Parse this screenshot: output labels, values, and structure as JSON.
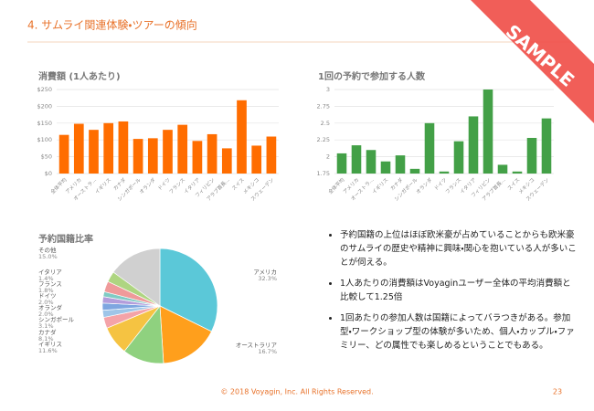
{
  "header": {
    "title": "4. サムライ関連体験・ツアーの傾向"
  },
  "ribbon": "SAMPLE",
  "chart_data": [
    {
      "type": "bar",
      "title": "消費額 (1人あたり)",
      "color": "#ff6d00",
      "grid": true,
      "categories": [
        "全体平均",
        "アメリカ",
        "オーストラ...",
        "イギリス",
        "カナダ",
        "シンガポール",
        "オランダ",
        "ドイツ",
        "フランス",
        "イタリア",
        "フィリピン",
        "アラブ首長...",
        "スイス",
        "メキシコ",
        "スウェーデン"
      ],
      "values": [
        115,
        148,
        130,
        150,
        155,
        103,
        105,
        130,
        145,
        97,
        117,
        75,
        218,
        83,
        110
      ],
      "ylim": [
        0,
        250
      ],
      "yticks": [
        {
          "value": 0,
          "label": "$0"
        },
        {
          "value": 50,
          "label": "$50"
        },
        {
          "value": 100,
          "label": "$100"
        },
        {
          "value": 150,
          "label": "$150"
        },
        {
          "value": 200,
          "label": "$200"
        },
        {
          "value": 250,
          "label": "$250"
        }
      ]
    },
    {
      "type": "bar",
      "title": "1回の予約で参加する人数",
      "color": "#43a047",
      "grid": true,
      "categories": [
        "全体平均",
        "アメリカ",
        "オーストラ...",
        "イギリス",
        "カナダ",
        "シンガポール",
        "オランダ",
        "ドイツ",
        "フランス",
        "イタリア",
        "フィリピン",
        "アラブ首長...",
        "スイス",
        "メキシコ",
        "スウェーデン"
      ],
      "values": [
        2.05,
        2.17,
        2.1,
        1.93,
        2.02,
        1.82,
        2.5,
        1.78,
        2.23,
        2.6,
        3.0,
        1.88,
        1.78,
        2.28,
        2.57
      ],
      "ylim": [
        1.75,
        3
      ],
      "yticks": [
        1.75,
        2,
        2.25,
        2.5,
        2.75,
        3
      ]
    },
    {
      "type": "pie",
      "title": "予約国籍比率",
      "categories": [
        "アメリカ",
        "オーストラリア",
        "イギリス",
        "カナダ",
        "シンガポール",
        "オランダ",
        "ドイツ",
        "フランス",
        "イタリア",
        null,
        null,
        "その他"
      ],
      "values": [
        32.3,
        16.7,
        11.6,
        8.1,
        3.1,
        2.0,
        2.0,
        1.8,
        1.4,
        3.0,
        3.0,
        15.0
      ],
      "value_labels": [
        "32.3%",
        "16.7%",
        "11.6%",
        "8.1%",
        "3.1%",
        "2.0%",
        "2.0%",
        "1.8%",
        "1.4%",
        null,
        null,
        "15.0%"
      ],
      "colors": [
        "#5bc8d8",
        "#ff9f1c",
        "#8fd17f",
        "#f5c342",
        "#f4a3a8",
        "#9ec5e8",
        "#7ea6e0",
        "#b39ddb",
        "#80cbc4",
        "#ef9a9a",
        "#aed581",
        "#d0d0d0"
      ]
    }
  ],
  "bullets": [
    "予約国籍の上位はほぼ欧米豪が占めていることからも欧米豪のサムライの歴史や精神に興味・関心を抱いている人が多いことが伺える。",
    "1人あたりの消費額はVoyaginユーザー全体の平均消費額と比較して1.25倍",
    "1回あたりの参加人数は国籍によってバラつきがある。参加型・ワークショップ型の体験が多いため、個人・カップル・ファミリー、どの属性でも楽しめるということでもある。"
  ],
  "footer": "© 2018 Voyagin, Inc. All Rights Reserved.",
  "page_number": "23"
}
